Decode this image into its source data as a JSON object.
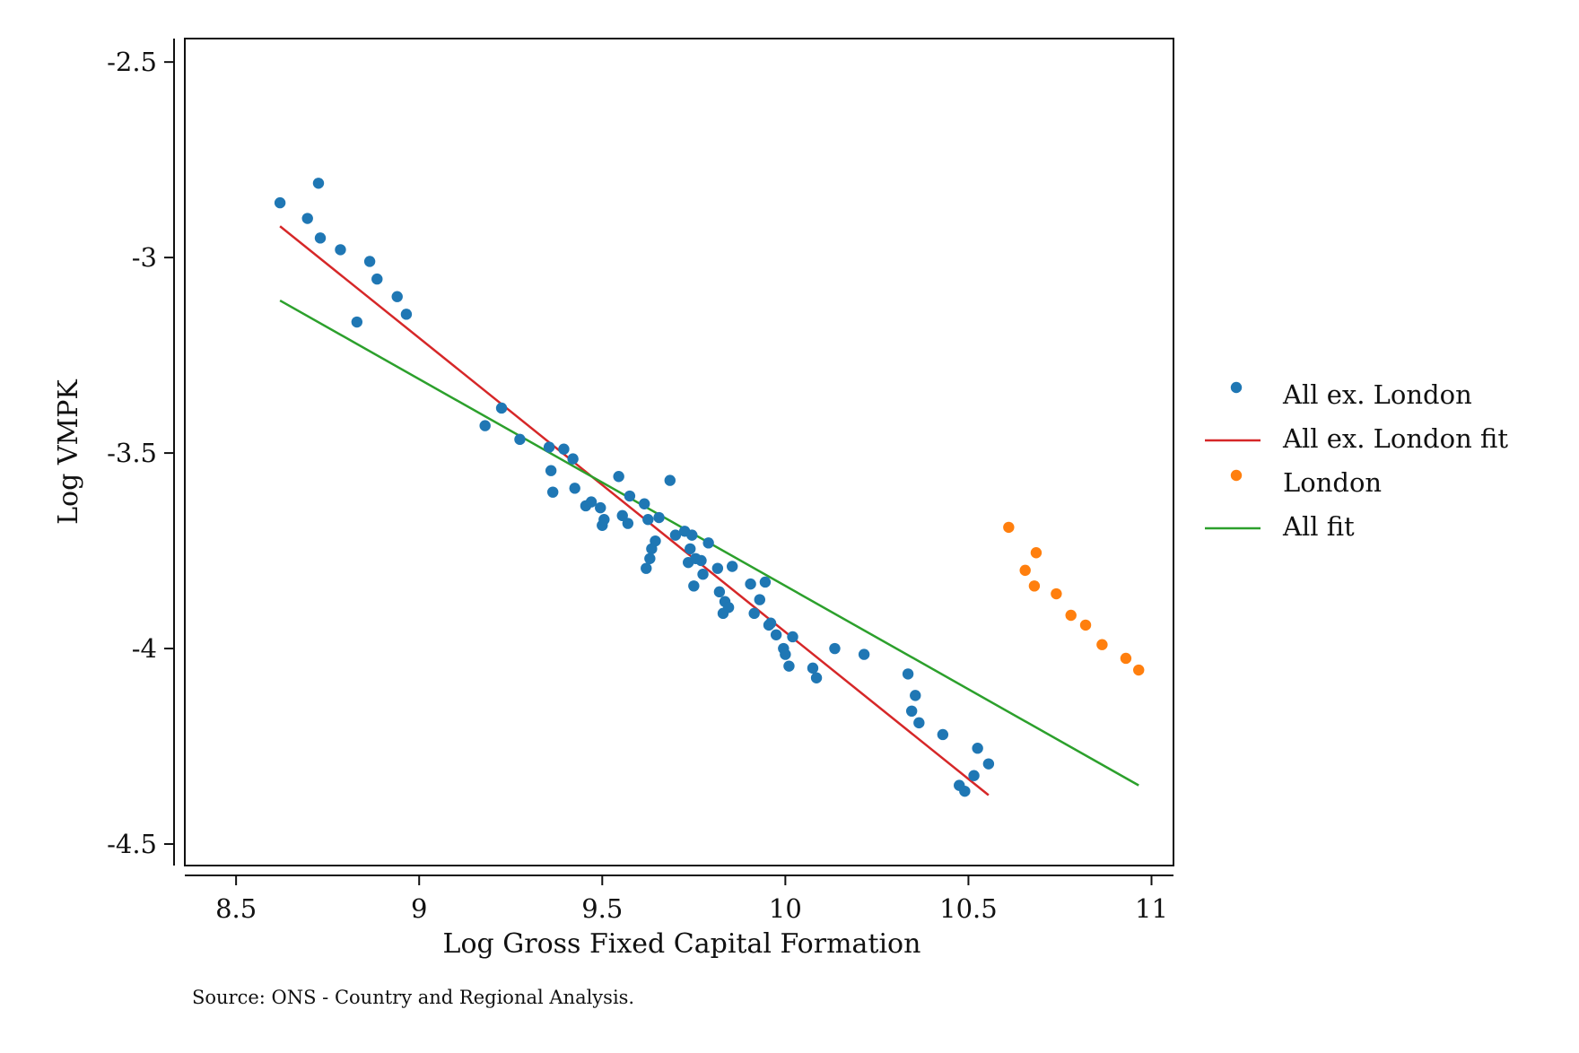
{
  "chart_data": {
    "type": "scatter",
    "xlabel": "Log Gross Fixed Capital Formation",
    "ylabel": "Log VMPK",
    "xlim": [
      8.36,
      11.06
    ],
    "ylim": [
      -4.555,
      -2.44
    ],
    "xticks": [
      8.5,
      9,
      9.5,
      10,
      10.5,
      11
    ],
    "xtick_labels": [
      "8.5",
      "9",
      "9.5",
      "10",
      "10.5",
      "11"
    ],
    "yticks": [
      -2.5,
      -3,
      -3.5,
      -4,
      -4.5
    ],
    "ytick_labels": [
      "-2.5",
      "-3",
      "-3.5",
      "-4",
      "-4.5"
    ],
    "grid": false,
    "legend_position": "right",
    "series": [
      {
        "name": "All ex. London",
        "kind": "scatter",
        "color": "#1f77b4",
        "points": [
          [
            8.62,
            -2.86
          ],
          [
            8.695,
            -2.9
          ],
          [
            8.725,
            -2.81
          ],
          [
            8.73,
            -2.95
          ],
          [
            8.785,
            -2.98
          ],
          [
            8.83,
            -3.165
          ],
          [
            8.865,
            -3.01
          ],
          [
            8.885,
            -3.055
          ],
          [
            8.94,
            -3.1
          ],
          [
            8.965,
            -3.145
          ],
          [
            9.18,
            -3.43
          ],
          [
            9.225,
            -3.385
          ],
          [
            9.275,
            -3.465
          ],
          [
            9.355,
            -3.485
          ],
          [
            9.36,
            -3.545
          ],
          [
            9.365,
            -3.6
          ],
          [
            9.395,
            -3.49
          ],
          [
            9.42,
            -3.515
          ],
          [
            9.425,
            -3.59
          ],
          [
            9.455,
            -3.635
          ],
          [
            9.47,
            -3.625
          ],
          [
            9.495,
            -3.64
          ],
          [
            9.5,
            -3.685
          ],
          [
            9.505,
            -3.67
          ],
          [
            9.545,
            -3.56
          ],
          [
            9.555,
            -3.66
          ],
          [
            9.57,
            -3.68
          ],
          [
            9.575,
            -3.61
          ],
          [
            9.615,
            -3.63
          ],
          [
            9.62,
            -3.795
          ],
          [
            9.625,
            -3.67
          ],
          [
            9.63,
            -3.77
          ],
          [
            9.635,
            -3.745
          ],
          [
            9.645,
            -3.725
          ],
          [
            9.655,
            -3.665
          ],
          [
            9.685,
            -3.57
          ],
          [
            9.7,
            -3.71
          ],
          [
            9.725,
            -3.7
          ],
          [
            9.735,
            -3.78
          ],
          [
            9.74,
            -3.745
          ],
          [
            9.745,
            -3.71
          ],
          [
            9.75,
            -3.84
          ],
          [
            9.755,
            -3.77
          ],
          [
            9.77,
            -3.775
          ],
          [
            9.775,
            -3.81
          ],
          [
            9.79,
            -3.73
          ],
          [
            9.815,
            -3.795
          ],
          [
            9.82,
            -3.855
          ],
          [
            9.83,
            -3.91
          ],
          [
            9.835,
            -3.88
          ],
          [
            9.845,
            -3.895
          ],
          [
            9.855,
            -3.79
          ],
          [
            9.905,
            -3.835
          ],
          [
            9.915,
            -3.91
          ],
          [
            9.93,
            -3.875
          ],
          [
            9.945,
            -3.83
          ],
          [
            9.955,
            -3.94
          ],
          [
            9.96,
            -3.935
          ],
          [
            9.975,
            -3.965
          ],
          [
            9.995,
            -4.0
          ],
          [
            10.0,
            -4.015
          ],
          [
            10.01,
            -4.045
          ],
          [
            10.02,
            -3.97
          ],
          [
            10.075,
            -4.05
          ],
          [
            10.085,
            -4.075
          ],
          [
            10.135,
            -4.0
          ],
          [
            10.215,
            -4.015
          ],
          [
            10.335,
            -4.065
          ],
          [
            10.345,
            -4.16
          ],
          [
            10.355,
            -4.12
          ],
          [
            10.365,
            -4.19
          ],
          [
            10.43,
            -4.22
          ],
          [
            10.475,
            -4.35
          ],
          [
            10.49,
            -4.365
          ],
          [
            10.515,
            -4.325
          ],
          [
            10.525,
            -4.255
          ],
          [
            10.555,
            -4.295
          ]
        ]
      },
      {
        "name": "All ex. London fit",
        "kind": "line",
        "color": "#d62728",
        "points": [
          [
            8.62,
            -2.92
          ],
          [
            10.555,
            -4.375
          ]
        ]
      },
      {
        "name": "London",
        "kind": "scatter",
        "color": "#ff7f0e",
        "points": [
          [
            10.61,
            -3.69
          ],
          [
            10.655,
            -3.8
          ],
          [
            10.68,
            -3.84
          ],
          [
            10.685,
            -3.755
          ],
          [
            10.74,
            -3.86
          ],
          [
            10.78,
            -3.915
          ],
          [
            10.82,
            -3.94
          ],
          [
            10.865,
            -3.99
          ],
          [
            10.93,
            -4.025
          ],
          [
            10.965,
            -4.055
          ]
        ]
      },
      {
        "name": "All fit",
        "kind": "line",
        "color": "#2ca02c",
        "points": [
          [
            8.62,
            -3.11
          ],
          [
            10.965,
            -4.35
          ]
        ]
      }
    ],
    "note": "Source: ONS - Country and Regional Analysis."
  }
}
